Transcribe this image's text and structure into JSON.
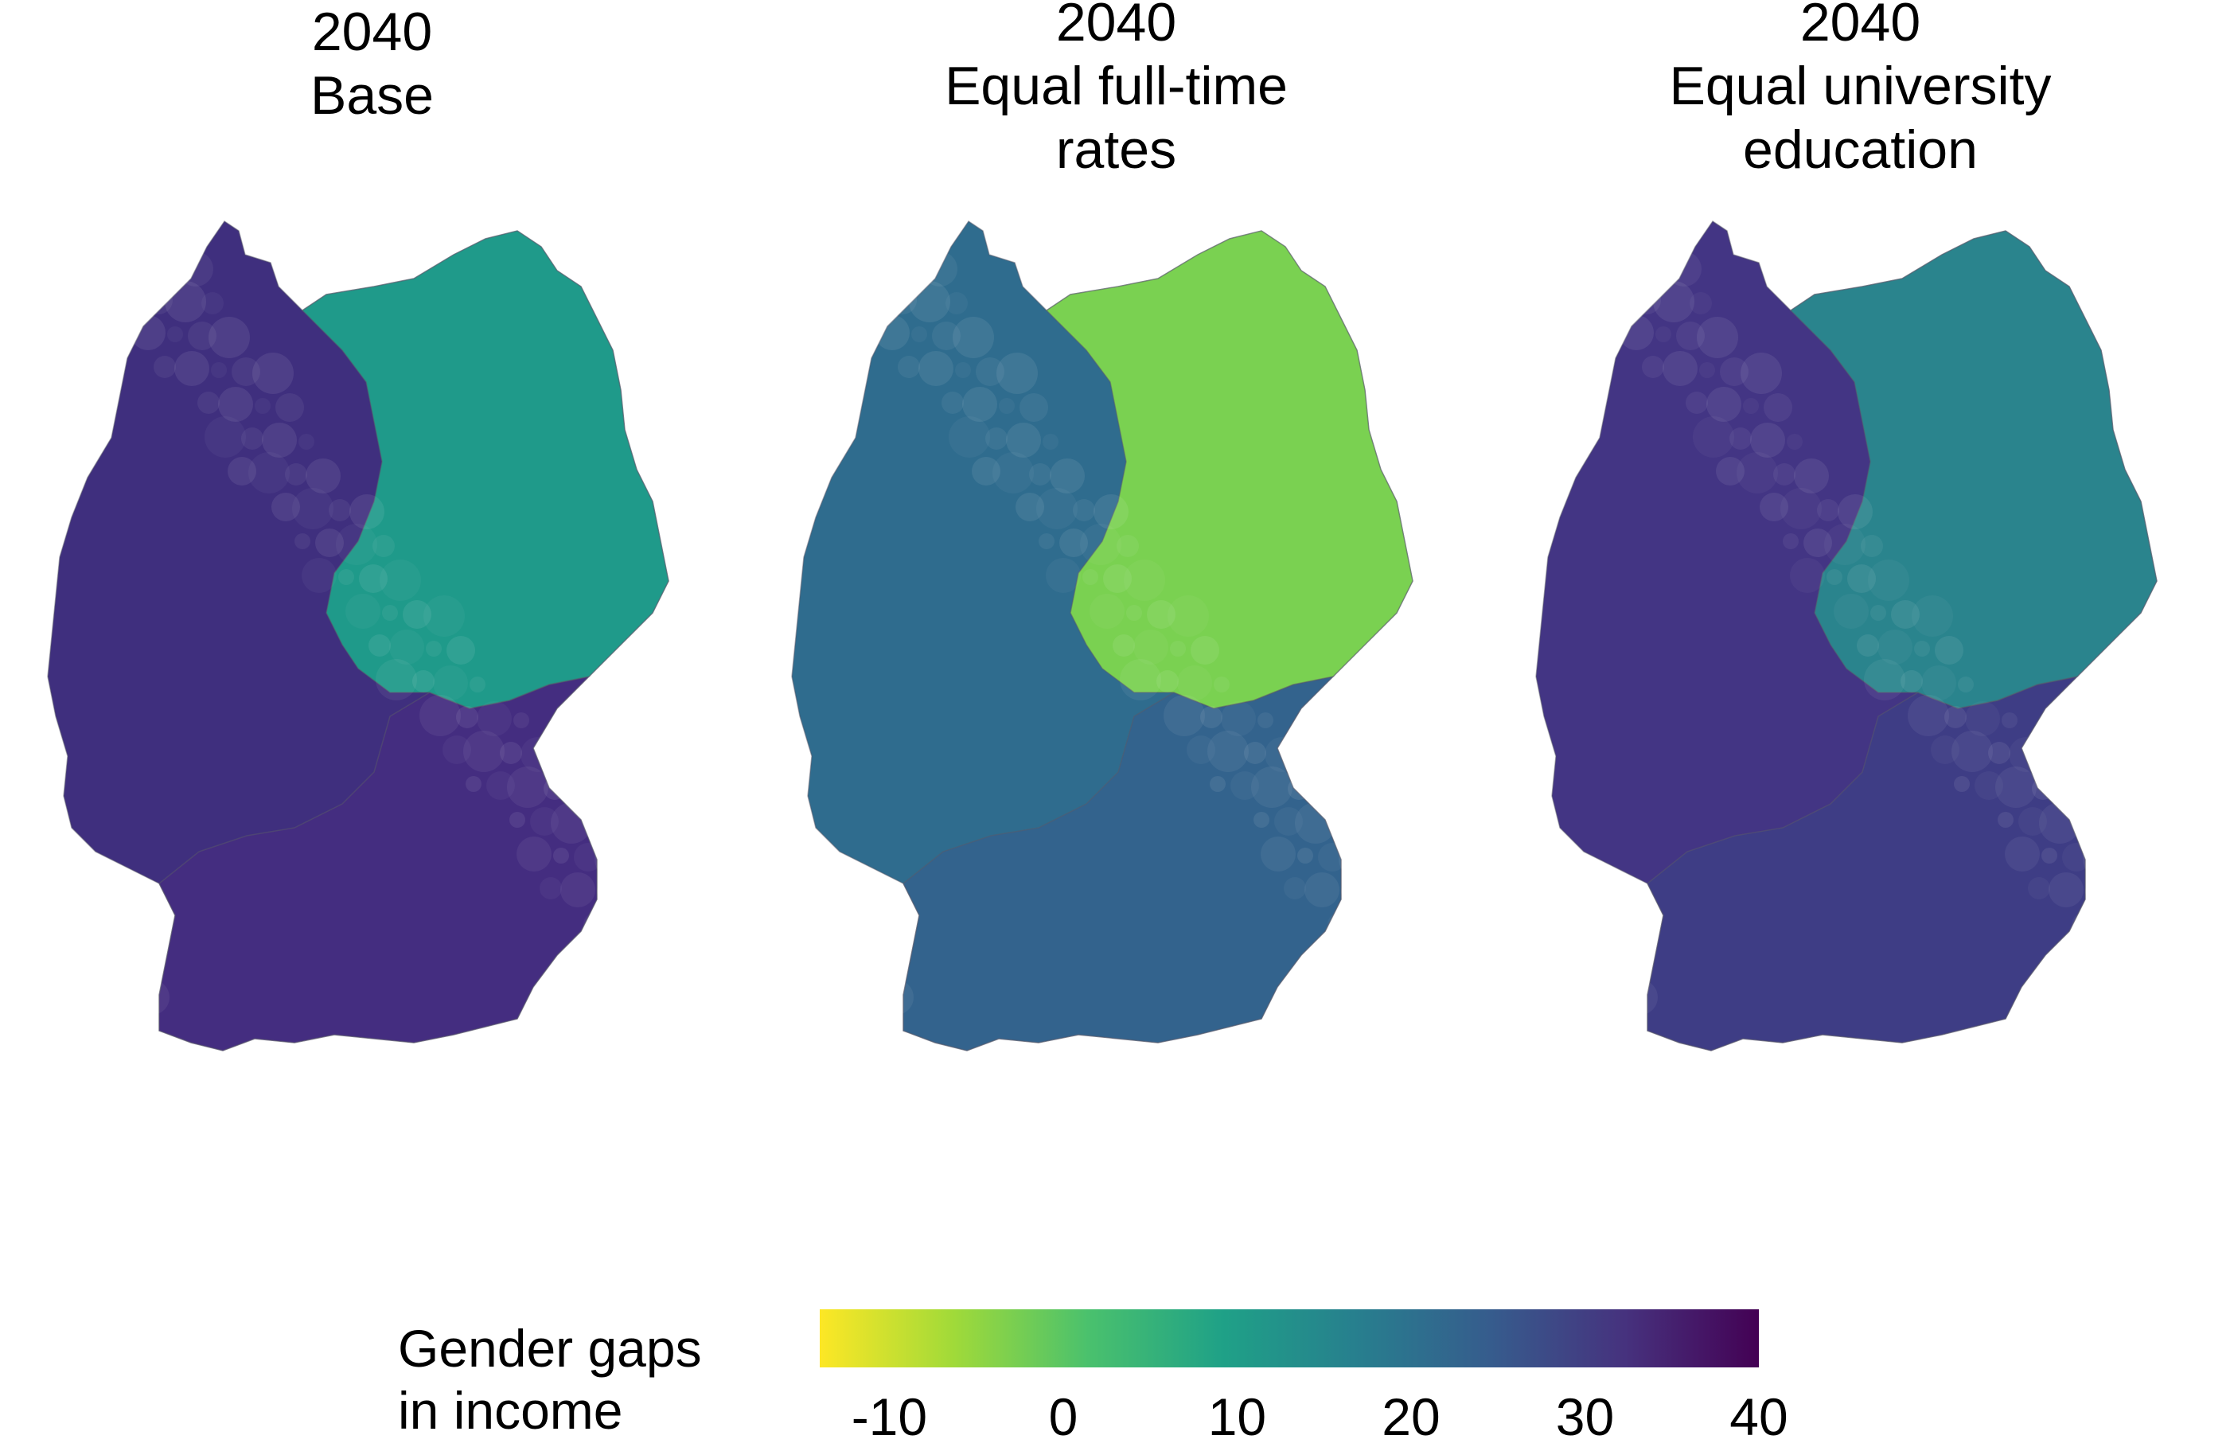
{
  "panels": [
    {
      "title_line1": "2040",
      "title_line2": "Base",
      "title_line3": "",
      "palette_bias": 0
    },
    {
      "title_line1": "2040",
      "title_line2": "Equal full-time",
      "title_line3": "rates",
      "palette_bias": 1
    },
    {
      "title_line1": "2040",
      "title_line2": "Equal university",
      "title_line3": "education",
      "palette_bias": 2
    }
  ],
  "legend": {
    "title_line1": "Gender gaps",
    "title_line2": "in income",
    "min": -14,
    "max": 40,
    "ticks": [
      "-10",
      "0",
      "10",
      "20",
      "30",
      "40"
    ],
    "tick_values": [
      -10,
      0,
      10,
      20,
      30,
      40
    ],
    "palette": [
      "#fde725",
      "#a0da39",
      "#4ac16d",
      "#1fa187",
      "#277f8e",
      "#365c8d",
      "#46327e",
      "#440154"
    ]
  },
  "colors": {
    "base_west": "#3f2f7e",
    "base_south": "#442d80",
    "base_east": "#1f9a8a",
    "ft_west": "#2f6c8e",
    "ft_south": "#33638d",
    "ft_east": "#7ad151",
    "uni_west": "#433584",
    "uni_south": "#3e3d85",
    "uni_east": "#2a848d"
  }
}
